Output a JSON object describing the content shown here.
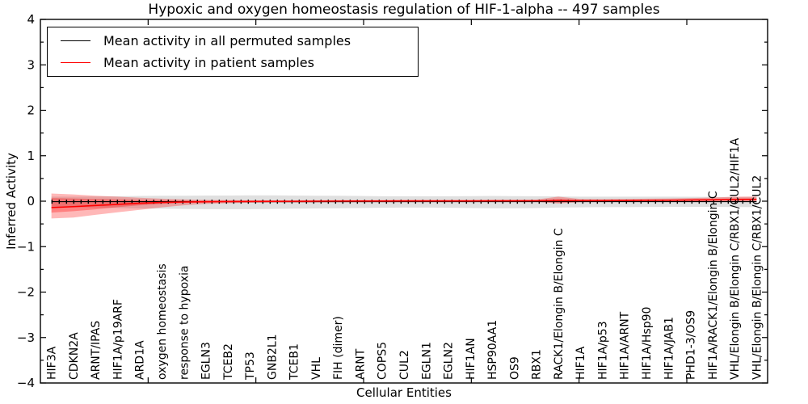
{
  "title": "Hypoxic and oxygen homeostasis regulation of HIF-1-alpha -- 497 samples",
  "legend": [
    {
      "label": "Mean activity in all permuted samples",
      "color": "#000000"
    },
    {
      "label": "Mean activity in patient samples",
      "color": "#ff0000"
    }
  ],
  "axes": {
    "ylabel": "Inferred Activity",
    "xlabel": "Cellular Entities",
    "ytick_labels": [
      "4",
      "3",
      "2",
      "1",
      "0",
      "−1",
      "−2",
      "−3",
      "−4"
    ]
  },
  "chart_data": {
    "type": "line",
    "title": "Hypoxic and oxygen homeostasis regulation of HIF-1-alpha -- 497 samples",
    "xlabel": "Cellular Entities",
    "ylabel": "Inferred Activity",
    "ylim": [
      -4,
      4
    ],
    "grid": false,
    "legend_position": "upper left",
    "categories": [
      "HIF3A",
      "CDKN2A",
      "ARNT/IPAS",
      "HIF1A/p19ARF",
      "ARD1A",
      "oxygen homeostasis",
      "response to hypoxia",
      "EGLN3",
      "TCEB2",
      "TP53",
      "GNB2L1",
      "TCEB1",
      "VHL",
      "FIH (dimer)",
      "ARNT",
      "COPS5",
      "CUL2",
      "EGLN1",
      "EGLN2",
      "HIF1AN",
      "HSP90AA1",
      "OS9",
      "RBX1",
      "RACK1/Elongin B/Elongin C",
      "HIF1A",
      "HIF1A/p53",
      "HIF1A/ARNT",
      "HIF1A/Hsp90",
      "HIF1A/JAB1",
      "PHD1-3/OS9",
      "HIF1A/RACK1/Elongin B/Elongin C",
      "VHL/Elongin B/Elongin C/RBX1/CUL2/HIF1A",
      "VHL/Elongin B/Elongin C/RBX1/CUL2"
    ],
    "series": [
      {
        "name": "Mean activity in all permuted samples",
        "color": "#000000",
        "values": [
          -0.01,
          -0.01,
          -0.01,
          -0.01,
          -0.01,
          -0.01,
          -0.01,
          -0.01,
          -0.01,
          -0.01,
          -0.01,
          -0.01,
          -0.01,
          -0.01,
          -0.01,
          -0.01,
          -0.01,
          -0.01,
          -0.01,
          -0.01,
          -0.01,
          -0.01,
          -0.01,
          -0.01,
          -0.01,
          -0.01,
          -0.01,
          -0.01,
          -0.01,
          -0.01,
          -0.01,
          -0.01,
          -0.01
        ]
      },
      {
        "name": "Mean activity in patient samples",
        "color": "#ff0000",
        "values": [
          -0.14,
          -0.12,
          -0.095,
          -0.07,
          -0.045,
          -0.028,
          -0.018,
          -0.012,
          -0.008,
          -0.005,
          -0.003,
          -0.002,
          0,
          0.002,
          0.003,
          0.004,
          0.005,
          0.005,
          0.006,
          0.006,
          0.007,
          0.008,
          0.009,
          0.012,
          0.012,
          0.013,
          0.015,
          0.018,
          0.02,
          0.025,
          0.03,
          0.035,
          0.038
        ]
      }
    ],
    "bands": [
      {
        "name": "permuted-samples-range",
        "color": "rgba(0,0,0,0.12)",
        "upper": [
          0.1,
          0.1,
          0.105,
          0.11,
          0.115,
          0.12,
          0.12,
          0.125,
          0.125,
          0.13,
          0.13,
          0.125,
          0.12,
          0.12,
          0.115,
          0.11,
          0.11,
          0.11,
          0.11,
          0.112,
          0.115,
          0.112,
          0.108,
          0.105,
          0.1,
          0.1,
          0.1,
          0.1,
          0.1,
          0.098,
          0.095,
          0.09,
          0.09
        ],
        "lower": [
          -0.13,
          -0.135,
          -0.14,
          -0.15,
          -0.16,
          -0.165,
          -0.17,
          -0.175,
          -0.175,
          -0.175,
          -0.17,
          -0.165,
          -0.16,
          -0.155,
          -0.15,
          -0.145,
          -0.14,
          -0.14,
          -0.145,
          -0.15,
          -0.155,
          -0.155,
          -0.15,
          -0.14,
          -0.135,
          -0.13,
          -0.13,
          -0.128,
          -0.126,
          -0.125,
          -0.125,
          -0.128,
          -0.13
        ]
      },
      {
        "name": "patient-samples-outer-band",
        "color": "rgba(255,0,0,0.28)",
        "upper": [
          0.17,
          0.15,
          0.12,
          0.1,
          0.075,
          0.055,
          0.04,
          0.03,
          0.025,
          0.02,
          0.02,
          0.02,
          0.022,
          0.025,
          0.025,
          0.027,
          0.028,
          0.028,
          0.03,
          0.03,
          0.032,
          0.034,
          0.036,
          0.1,
          0.05,
          0.045,
          0.05,
          0.055,
          0.06,
          0.07,
          0.08,
          0.1,
          0.105
        ],
        "lower": [
          -0.38,
          -0.36,
          -0.3,
          -0.245,
          -0.19,
          -0.135,
          -0.09,
          -0.06,
          -0.045,
          -0.035,
          -0.03,
          -0.03,
          -0.028,
          -0.025,
          -0.022,
          -0.02,
          -0.02,
          -0.018,
          -0.018,
          -0.016,
          -0.015,
          -0.014,
          -0.012,
          -0.05,
          -0.02,
          -0.015,
          -0.012,
          -0.01,
          -0.008,
          -0.005,
          -0.003,
          -0.002,
          0
        ]
      },
      {
        "name": "patient-samples-inner-band",
        "color": "rgba(255,0,0,0.30)",
        "upper": [
          0.07,
          0.06,
          0.05,
          0.04,
          0.03,
          0.02,
          0.015,
          0.01,
          0.01,
          0.008,
          0.008,
          0.008,
          0.01,
          0.012,
          0.012,
          0.013,
          0.014,
          0.014,
          0.015,
          0.015,
          0.016,
          0.017,
          0.018,
          0.05,
          0.025,
          0.024,
          0.026,
          0.03,
          0.033,
          0.04,
          0.05,
          0.06,
          0.065
        ],
        "lower": [
          -0.25,
          -0.22,
          -0.18,
          -0.13,
          -0.09,
          -0.06,
          -0.04,
          -0.03,
          -0.025,
          -0.02,
          -0.018,
          -0.016,
          -0.014,
          -0.012,
          -0.01,
          -0.008,
          -0.007,
          -0.006,
          -0.005,
          -0.005,
          -0.004,
          -0.003,
          -0.002,
          -0.025,
          -0.005,
          -0.002,
          0,
          0.003,
          0.006,
          0.01,
          0.012,
          0.015,
          0.018
        ]
      }
    ]
  }
}
